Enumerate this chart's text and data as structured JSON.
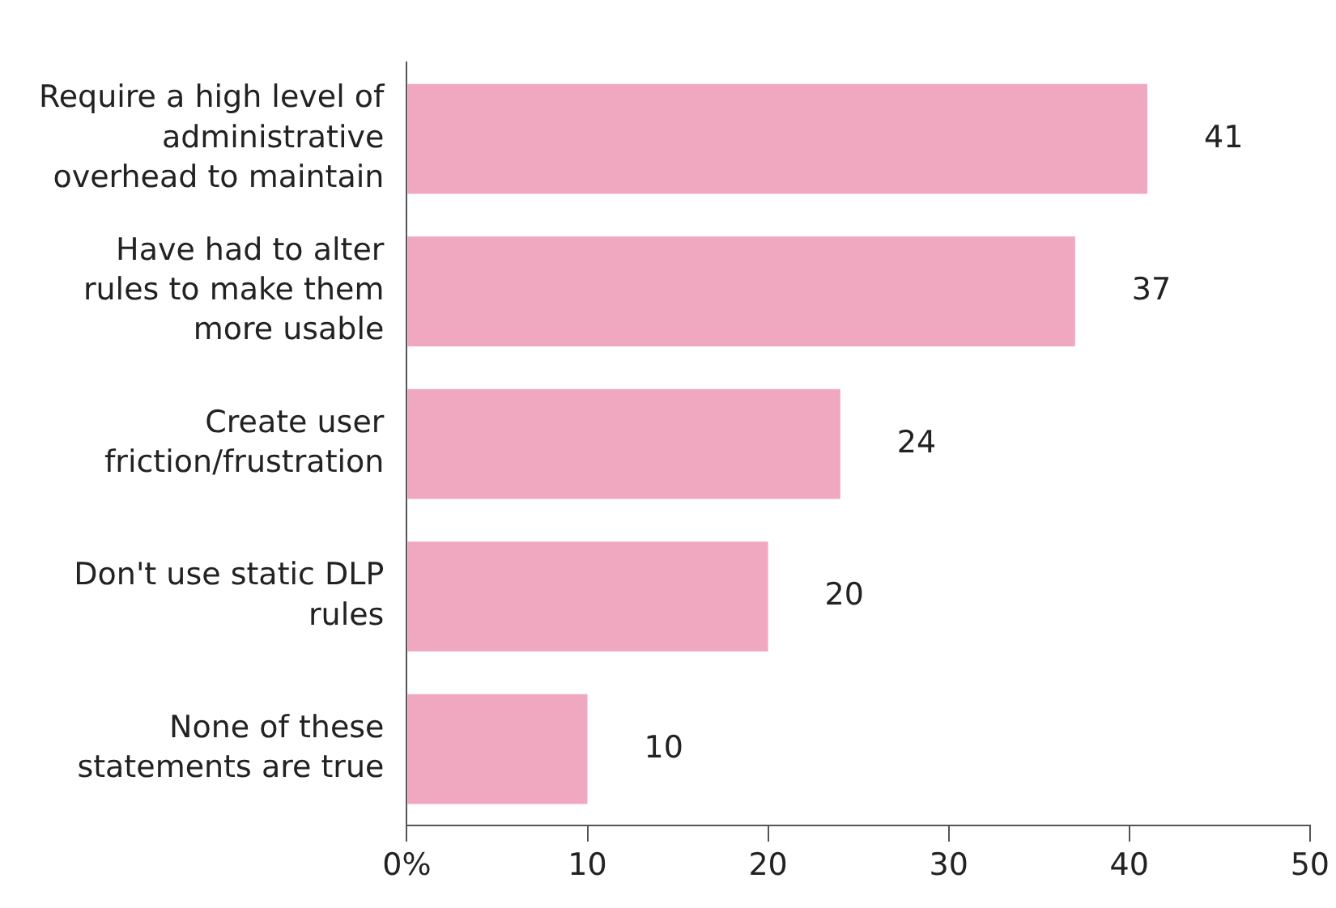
{
  "chart_data": {
    "type": "bar",
    "orientation": "horizontal",
    "categories": [
      "Require a high level of administrative overhead to maintain",
      "Have had to alter rules to make them more usable",
      "Create user friction/frustration",
      "Don't use static DLP rules",
      "None of these statements are true"
    ],
    "values": [
      41,
      37,
      24,
      20,
      10
    ],
    "color": "#f0a8c1",
    "xlim": [
      0,
      50
    ],
    "xticks": [
      {
        "value": 0,
        "label": "0%"
      },
      10,
      20,
      30,
      40,
      50
    ],
    "data_labels": true,
    "grid": false
  }
}
